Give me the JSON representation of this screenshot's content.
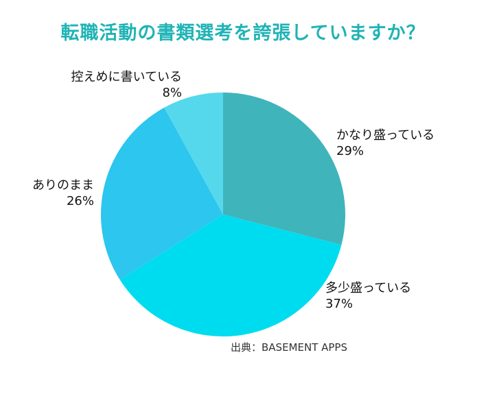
{
  "chart_data": {
    "type": "pie",
    "title": "転職活動の書類選考を誇張していますか？",
    "slices": [
      {
        "label": "かなり盛っている",
        "value": 29,
        "value_label": "29%",
        "color": "#3fb4bb"
      },
      {
        "label": "多少盛っている",
        "value": 37,
        "value_label": "37%",
        "color": "#00dcef"
      },
      {
        "label": "ありのまま",
        "value": 26,
        "value_label": "26%",
        "color": "#2cc6ee"
      },
      {
        "label": "控えめに書いている",
        "value": 8,
        "value_label": "8%",
        "color": "#55d8ec"
      }
    ],
    "start": "12 o'clock",
    "direction": "clockwise",
    "legend": "none"
  },
  "source": "出典：BASEMENT APPS"
}
